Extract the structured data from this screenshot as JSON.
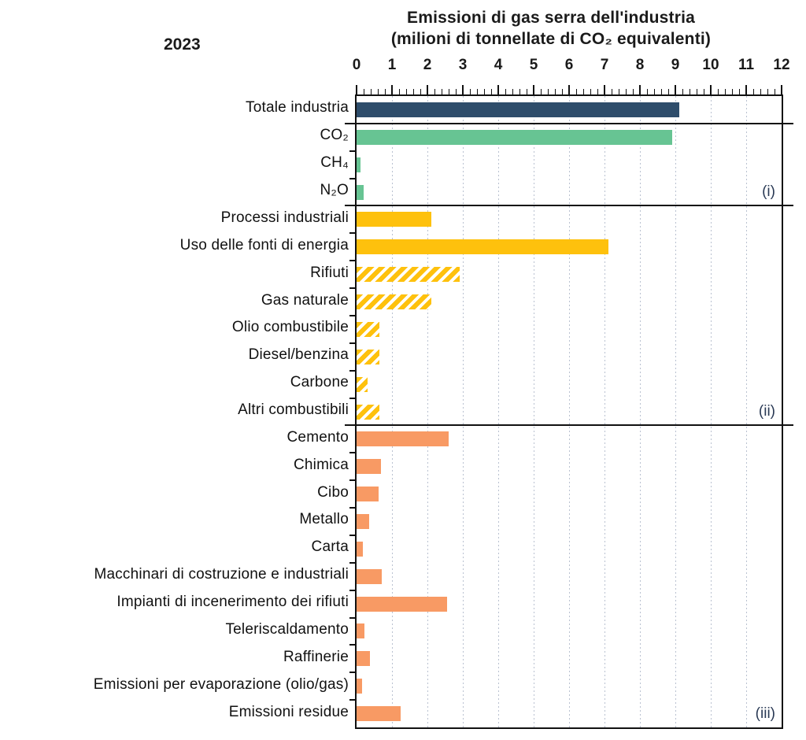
{
  "chart_data": {
    "type": "bar",
    "orientation": "horizontal",
    "title": "Emissioni di gas serra dell'industria",
    "subtitle": "(milioni di tonnellate di CO₂ equivalenti)",
    "year_label": "2023",
    "xlabel": "milioni di tonnellate di CO₂ equivalenti",
    "xlim": [
      0,
      12
    ],
    "x_major_step": 1,
    "x_minor_step": 0.2,
    "x_tick_labels": [
      "0",
      "1",
      "2",
      "3",
      "4",
      "5",
      "6",
      "7",
      "8",
      "9",
      "10",
      "11",
      "12"
    ],
    "grid": "vertical dotted gridlines at each integer",
    "legend": "none",
    "colors": {
      "navy": "#2e4d6b",
      "green": "#67c493",
      "yellow": "#fec10d",
      "orange": "#f89a64",
      "grid": "#b9c1d0",
      "axis": "#111111"
    },
    "rows": [
      {
        "label": "Totale industria",
        "value": 9.1,
        "color": "navy"
      },
      {
        "label": "CO₂",
        "value": 8.9,
        "color": "green"
      },
      {
        "label": "CH₄",
        "value": 0.1,
        "color": "green"
      },
      {
        "label": "N₂O",
        "value": 0.2,
        "color": "green"
      },
      {
        "label": "Processi industriali",
        "value": 2.1,
        "color": "yellow"
      },
      {
        "label": "Uso delle fonti di energia",
        "value": 7.1,
        "color": "yellow"
      },
      {
        "label": "Rifiuti",
        "value": 2.9,
        "color": "yellow",
        "hatch": true
      },
      {
        "label": "Gas naturale",
        "value": 2.1,
        "color": "yellow",
        "hatch": true
      },
      {
        "label": "Olio combustibile",
        "value": 0.65,
        "color": "yellow",
        "hatch": true
      },
      {
        "label": "Diesel/benzina",
        "value": 0.65,
        "color": "yellow",
        "hatch": true
      },
      {
        "label": "Carbone",
        "value": 0.3,
        "color": "yellow",
        "hatch": true
      },
      {
        "label": "Altri combustibili",
        "value": 0.65,
        "color": "yellow",
        "hatch": true
      },
      {
        "label": "Cemento",
        "value": 2.6,
        "color": "orange"
      },
      {
        "label": "Chimica",
        "value": 0.68,
        "color": "orange"
      },
      {
        "label": "Cibo",
        "value": 0.63,
        "color": "orange"
      },
      {
        "label": "Metallo",
        "value": 0.36,
        "color": "orange"
      },
      {
        "label": "Carta",
        "value": 0.17,
        "color": "orange"
      },
      {
        "label": "Macchinari di costruzione e industriali",
        "value": 0.7,
        "color": "orange"
      },
      {
        "label": "Impianti di incenerimento dei rifiuti",
        "value": 2.55,
        "color": "orange"
      },
      {
        "label": "Teleriscaldamento",
        "value": 0.22,
        "color": "orange"
      },
      {
        "label": "Raffinerie",
        "value": 0.38,
        "color": "orange"
      },
      {
        "label": "Emissioni per evaporazione (olio/gas)",
        "value": 0.16,
        "color": "orange"
      },
      {
        "label": "Emissioni residue",
        "value": 1.25,
        "color": "orange"
      }
    ],
    "separators_after_rows": [
      0,
      3,
      11
    ],
    "group_markers": [
      {
        "label": "(i)",
        "row": 3
      },
      {
        "label": "(ii)",
        "row": 11
      },
      {
        "label": "(iii)",
        "row": 22
      }
    ]
  }
}
